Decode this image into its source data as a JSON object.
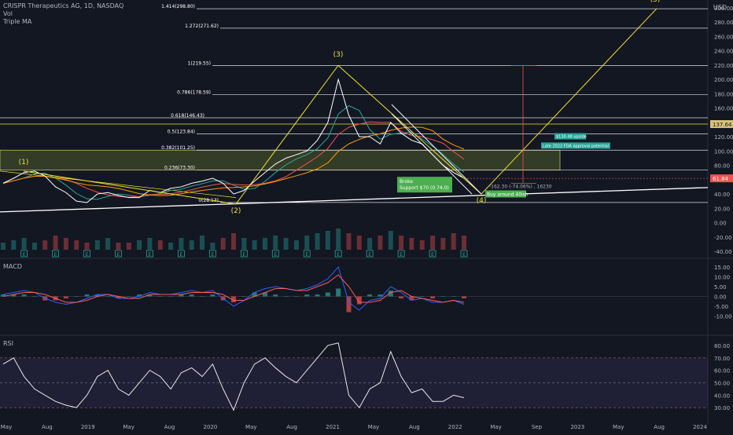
{
  "header": {
    "symbol": "CRISPR Therapeutics AG, 1D, NASDAQ",
    "vol_label": "Vol",
    "ma_label": "Triple MA",
    "currency": "USD"
  },
  "panes": {
    "macd_label": "MACD",
    "rsi_label": "RSI"
  },
  "colors": {
    "background": "#131722",
    "price_line": "#ffffff",
    "fib_line": "#ffffff",
    "wave": "#f0e130",
    "zone": "#5b6b2d",
    "macd": "#2962ff",
    "signal": "#ff5d55",
    "rsi": "#e8e8e8",
    "up": "#26a69a",
    "down": "#ef5350",
    "earnings": "#26a69a"
  },
  "chart_data": [
    {
      "type": "line",
      "name": "price",
      "title": "CRISPR Therapeutics AG, 1D, NASDAQ",
      "ylim": [
        -40,
        300
      ],
      "y_ticks": [
        -40,
        -20,
        0,
        20,
        40,
        60,
        80,
        100,
        120,
        140,
        160,
        180,
        200,
        220,
        240,
        260,
        280,
        300
      ],
      "y_tick_labels": [
        "-40.00",
        "-20.00",
        "0.00",
        "20.00",
        "40.00",
        "60.00",
        "80.00",
        "100.00",
        "120.00",
        "140.00",
        "160.00",
        "180.00",
        "200.00",
        "220.00",
        "240.00",
        "260.00",
        "280.00",
        "300.00"
      ],
      "x_ticks": [
        "May",
        "Aug",
        "2019",
        "May",
        "Aug",
        "2020",
        "May",
        "Aug",
        "2021",
        "May",
        "Aug",
        "2022",
        "May",
        "Sep",
        "2023",
        "May",
        "Aug",
        "2024"
      ],
      "x": [
        "2018-05",
        "2018-06",
        "2018-07",
        "2018-08",
        "2018-09",
        "2018-10",
        "2018-11",
        "2018-12",
        "2019-01",
        "2019-02",
        "2019-03",
        "2019-04",
        "2019-05",
        "2019-06",
        "2019-07",
        "2019-08",
        "2019-09",
        "2019-10",
        "2019-11",
        "2019-12",
        "2020-01",
        "2020-02",
        "2020-03",
        "2020-04",
        "2020-05",
        "2020-06",
        "2020-07",
        "2020-08",
        "2020-09",
        "2020-10",
        "2020-11",
        "2020-12",
        "2021-01",
        "2021-02",
        "2021-03",
        "2021-04",
        "2021-05",
        "2021-06",
        "2021-07",
        "2021-08",
        "2021-09",
        "2021-10",
        "2021-11",
        "2021-12",
        "2022-01"
      ],
      "values": [
        55,
        62,
        70,
        72,
        65,
        50,
        42,
        30,
        28,
        40,
        42,
        38,
        35,
        35,
        45,
        42,
        48,
        50,
        55,
        58,
        62,
        55,
        40,
        45,
        58,
        70,
        82,
        90,
        95,
        100,
        115,
        140,
        200,
        150,
        120,
        120,
        110,
        140,
        125,
        115,
        110,
        95,
        80,
        70,
        62
      ],
      "annotations": {
        "last_price": "61.84",
        "level_label": "137.64",
        "fib_labels": [
          "1.414(298.80)",
          "1.272(271.62)",
          "1(219.55)",
          "0.786(178.59)",
          "0.618(146.43)",
          "0.5(123.84)",
          "0.382(101.25)",
          "0.236(73.30)",
          "0(28.13)"
        ],
        "fib_values": [
          298.8,
          271.62,
          219.55,
          178.59,
          146.43,
          123.84,
          101.25,
          73.3,
          28.13
        ],
        "waves": [
          "(1)",
          "(2)",
          "(3)",
          "(4)",
          "(5)"
        ],
        "broke_text": "Broke\nSupport $70 (0.74.0)",
        "buy_text": "Buy around 40ish",
        "projection_text": "-162.30 (-74.06%) , 16230",
        "target_text": "$130.48 upside",
        "note_text": "Late 2022 FDA approval potential"
      }
    },
    {
      "type": "bar",
      "name": "volume",
      "values": [
        3,
        4,
        5,
        3,
        4,
        6,
        5,
        4,
        3,
        4,
        5,
        3,
        3,
        4,
        5,
        4,
        3,
        5,
        4,
        6,
        3,
        5,
        7,
        5,
        4,
        5,
        6,
        5,
        4,
        6,
        7,
        8,
        9,
        7,
        6,
        5,
        6,
        8,
        6,
        5,
        4,
        6,
        5,
        7,
        6
      ]
    },
    {
      "type": "line",
      "name": "MACD",
      "ylim": [
        -15,
        17
      ],
      "y_ticks": [
        -10,
        -5,
        0,
        5,
        10,
        15
      ],
      "y_tick_labels": [
        "-10.00",
        "-5.00",
        "0.00",
        "5.00",
        "10.00",
        "15.00"
      ],
      "series": [
        {
          "name": "MACD",
          "values": [
            1,
            2,
            3,
            2,
            -1,
            -3,
            -4,
            -3,
            -1,
            1,
            1,
            -1,
            -1,
            0,
            2,
            1,
            1,
            2,
            3,
            2,
            3,
            -1,
            -5,
            -2,
            2,
            4,
            5,
            4,
            3,
            4,
            6,
            9,
            15,
            -3,
            -7,
            -2,
            -1,
            5,
            2,
            -2,
            -1,
            -3,
            -3,
            -2,
            -4
          ]
        },
        {
          "name": "Signal",
          "values": [
            0,
            1,
            2,
            2,
            1,
            -1,
            -3,
            -3,
            -2,
            0,
            1,
            0,
            -1,
            -1,
            1,
            1,
            1,
            1,
            2,
            2,
            2,
            1,
            -2,
            -2,
            0,
            2,
            4,
            4,
            3,
            3,
            5,
            7,
            11,
            5,
            -3,
            -3,
            -2,
            2,
            3,
            0,
            -1,
            -2,
            -3,
            -2,
            -3
          ]
        }
      ]
    },
    {
      "type": "line",
      "name": "RSI",
      "ylim": [
        20,
        85
      ],
      "y_ticks": [
        30,
        40,
        50,
        60,
        70,
        80
      ],
      "y_tick_labels": [
        "30.00",
        "40.00",
        "50.00",
        "60.00",
        "70.00",
        "80.00"
      ],
      "values": [
        65,
        70,
        55,
        45,
        40,
        35,
        32,
        30,
        40,
        55,
        60,
        45,
        40,
        50,
        60,
        55,
        45,
        58,
        62,
        55,
        65,
        45,
        28,
        50,
        65,
        70,
        62,
        55,
        50,
        60,
        70,
        80,
        82,
        40,
        30,
        45,
        50,
        75,
        55,
        42,
        45,
        35,
        35,
        40,
        38
      ]
    }
  ]
}
